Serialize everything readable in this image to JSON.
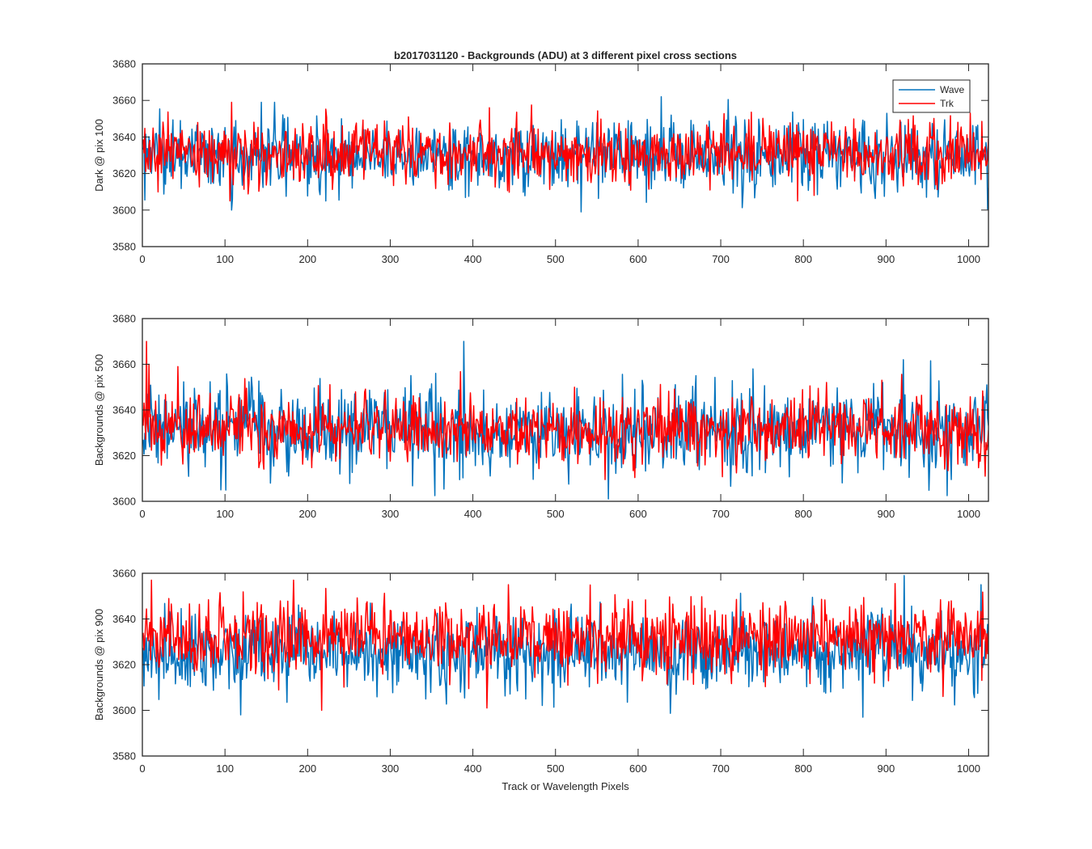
{
  "figure": {
    "title": "b2017031120 - Backgrounds (ADU) at 3 different pixel cross sections",
    "xlabel": "Track or Wavelength Pixels"
  },
  "colors": {
    "wave": "#0072BD",
    "trk": "#FF0000",
    "axis": "#262626",
    "background": "#FFFFFF"
  },
  "chart_data": [
    {
      "type": "line",
      "ylabel": "Dark @ pix 100",
      "xlim": [
        0,
        1024
      ],
      "ylim": [
        3580,
        3680
      ],
      "x_ticks": [
        0,
        100,
        200,
        300,
        400,
        500,
        600,
        700,
        800,
        900,
        1000
      ],
      "y_ticks": [
        3580,
        3600,
        3620,
        3640,
        3660,
        3680
      ],
      "legend": {
        "placement": "top-right",
        "entries": [
          "Wave",
          "Trk"
        ]
      },
      "series": [
        {
          "name": "Wave",
          "color": "#0072BD",
          "n_points": 1024,
          "x_range": [
            1,
            1024
          ],
          "mean": 3630,
          "approx_range": [
            3599,
            3662
          ],
          "notable_points": [
            [
              108,
              3600
            ],
            [
              531,
              3599
            ],
            [
              628,
              3662
            ],
            [
              160,
              3659
            ],
            [
              144,
              3659
            ]
          ]
        },
        {
          "name": "Trk",
          "color": "#FF0000",
          "n_points": 1024,
          "x_range": [
            1,
            1024
          ],
          "mean": 3631,
          "approx_range": [
            3604,
            3659
          ],
          "notable_points": [
            [
              108,
              3659
            ],
            [
              106,
              3605
            ],
            [
              793,
              3605
            ],
            [
              1002,
              3653
            ]
          ]
        }
      ]
    },
    {
      "type": "line",
      "ylabel": "Backgrounds @ pix 500",
      "xlim": [
        0,
        1024
      ],
      "ylim": [
        3600,
        3680
      ],
      "x_ticks": [
        0,
        100,
        200,
        300,
        400,
        500,
        600,
        700,
        800,
        900,
        1000
      ],
      "y_ticks": [
        3600,
        3620,
        3640,
        3660,
        3680
      ],
      "series": [
        {
          "name": "Wave",
          "color": "#0072BD",
          "n_points": 1024,
          "x_range": [
            1,
            1024
          ],
          "mean": 3631,
          "approx_range": [
            3601,
            3670
          ],
          "notable_points": [
            [
              389,
              3670
            ],
            [
              921,
              3662
            ],
            [
              564,
              3601
            ],
            [
              95,
              3605
            ]
          ]
        },
        {
          "name": "Trk",
          "color": "#FF0000",
          "n_points": 1024,
          "x_range": [
            1,
            1024
          ],
          "mean": 3632,
          "approx_range": [
            3608,
            3670
          ],
          "notable_points": [
            [
              5,
              3670
            ],
            [
              8,
              3660
            ],
            [
              43,
              3659
            ],
            [
              1020,
              3611
            ]
          ]
        }
      ]
    },
    {
      "type": "line",
      "ylabel": "Backgrounds @ pix 900",
      "xlim": [
        0,
        1024
      ],
      "ylim": [
        3580,
        3660
      ],
      "x_ticks": [
        0,
        100,
        200,
        300,
        400,
        500,
        600,
        700,
        800,
        900,
        1000
      ],
      "y_ticks": [
        3580,
        3600,
        3620,
        3640,
        3660
      ],
      "series": [
        {
          "name": "Wave",
          "color": "#0072BD",
          "n_points": 1024,
          "x_range": [
            1,
            1024
          ],
          "mean": 3625,
          "approx_range": [
            3597,
            3659
          ],
          "notable_points": [
            [
              922,
              3659
            ],
            [
              119,
              3598
            ],
            [
              872,
              3597
            ],
            [
              1015,
              3655
            ]
          ]
        },
        {
          "name": "Trk",
          "color": "#FF0000",
          "n_points": 1024,
          "x_range": [
            1,
            1024
          ],
          "mean": 3632,
          "approx_range": [
            3600,
            3657
          ],
          "notable_points": [
            [
              11,
              3657
            ],
            [
              183,
              3657
            ],
            [
              217,
              3600
            ],
            [
              417,
              3601
            ],
            [
              443,
              3655
            ]
          ]
        }
      ]
    }
  ]
}
